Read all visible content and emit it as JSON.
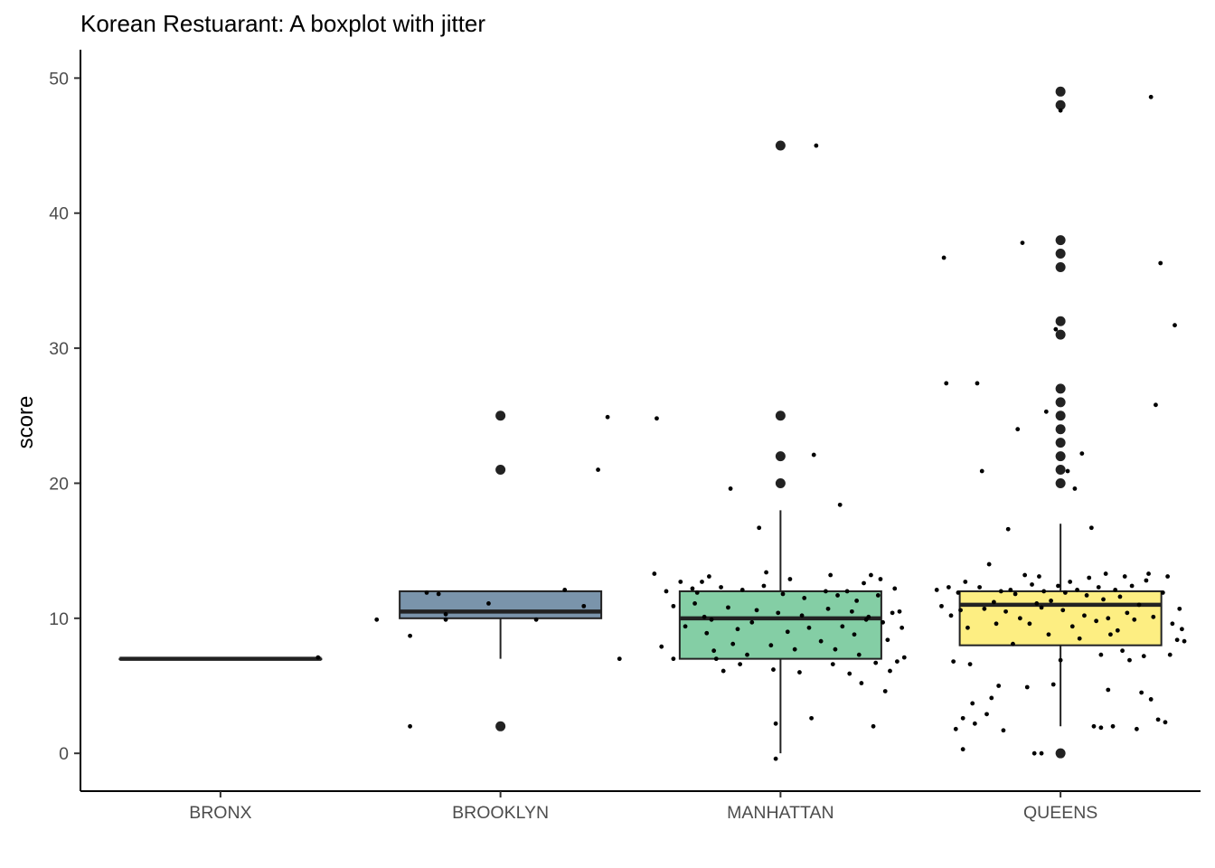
{
  "chart_data": {
    "type": "boxplot",
    "title": "Korean Restuarant: A boxplot with jitter",
    "xlabel": "",
    "ylabel": "score",
    "ylim": [
      -2.8,
      52.1
    ],
    "yticks": [
      0,
      10,
      20,
      30,
      40,
      50
    ],
    "grid": false,
    "legend": "none",
    "categories": [
      "BRONX",
      "BROOKLYN",
      "MANHATTAN",
      "QUEENS"
    ],
    "colors": [
      "#440154",
      "#7a94ab",
      "#84ceA5",
      "#fdee82"
    ],
    "boxes": [
      {
        "category": "BRONX",
        "lower_whisker": 7,
        "q1": 7,
        "median": 7,
        "q3": 7,
        "upper_whisker": 7,
        "outliers": []
      },
      {
        "category": "BROOKLYN",
        "lower_whisker": 7,
        "q1": 10,
        "median": 10.5,
        "q3": 12,
        "upper_whisker": 12,
        "outliers": [
          25,
          21,
          2
        ]
      },
      {
        "category": "MANHATTAN",
        "lower_whisker": 0,
        "q1": 7,
        "median": 10,
        "q3": 12,
        "upper_whisker": 18,
        "outliers": [
          45,
          25,
          22,
          20
        ]
      },
      {
        "category": "QUEENS",
        "lower_whisker": 2,
        "q1": 8,
        "median": 11,
        "q3": 12,
        "upper_whisker": 17,
        "outliers": [
          49,
          48,
          38,
          37,
          36,
          32,
          31,
          27,
          26,
          25,
          24,
          23,
          22,
          21,
          20,
          0
        ]
      }
    ],
    "jitter": [
      {
        "category": "BRONX",
        "points": [
          [
            0.41,
            7.1
          ]
        ]
      },
      {
        "category": "BROOKLYN",
        "points": [
          [
            -0.52,
            9.9
          ],
          [
            -0.38,
            8.7
          ],
          [
            -0.38,
            2.0
          ],
          [
            -0.31,
            11.9
          ],
          [
            -0.26,
            11.8
          ],
          [
            -0.23,
            10.3
          ],
          [
            -0.23,
            9.9
          ],
          [
            -0.05,
            11.1
          ],
          [
            0.15,
            9.9
          ],
          [
            0.27,
            12.1
          ],
          [
            0.35,
            10.9
          ],
          [
            0.41,
            21.0
          ],
          [
            0.45,
            24.9
          ],
          [
            0.5,
            7.0
          ]
        ]
      },
      {
        "category": "MANHATTAN",
        "points": [
          [
            -0.52,
            24.8
          ],
          [
            -0.53,
            13.3
          ],
          [
            -0.5,
            7.9
          ],
          [
            -0.48,
            12.0
          ],
          [
            -0.45,
            10.9
          ],
          [
            -0.42,
            12.7
          ],
          [
            -0.4,
            9.4
          ],
          [
            -0.37,
            12.2
          ],
          [
            -0.36,
            11.1
          ],
          [
            -0.35,
            11.9
          ],
          [
            -0.33,
            12.7
          ],
          [
            -0.32,
            10.1
          ],
          [
            -0.31,
            8.9
          ],
          [
            -0.3,
            13.1
          ],
          [
            -0.29,
            9.9
          ],
          [
            -0.28,
            7.6
          ],
          [
            -0.27,
            7.0
          ],
          [
            -0.25,
            12.3
          ],
          [
            -0.24,
            6.1
          ],
          [
            -0.22,
            10.8
          ],
          [
            -0.21,
            19.6
          ],
          [
            -0.2,
            8.1
          ],
          [
            -0.18,
            9.2
          ],
          [
            -0.17,
            6.6
          ],
          [
            -0.16,
            12.1
          ],
          [
            -0.14,
            7.3
          ],
          [
            -0.12,
            9.7
          ],
          [
            -0.1,
            10.6
          ],
          [
            -0.09,
            16.7
          ],
          [
            -0.07,
            12.4
          ],
          [
            -0.06,
            13.4
          ],
          [
            -0.04,
            8.0
          ],
          [
            -0.03,
            6.2
          ],
          [
            -0.02,
            2.2
          ],
          [
            -0.01,
            10.4
          ],
          [
            0.01,
            11.8
          ],
          [
            0.03,
            9.0
          ],
          [
            0.04,
            12.9
          ],
          [
            0.06,
            7.7
          ],
          [
            0.08,
            6.0
          ],
          [
            0.09,
            10.2
          ],
          [
            0.1,
            11.5
          ],
          [
            0.12,
            9.3
          ],
          [
            0.13,
            2.6
          ],
          [
            0.14,
            22.1
          ],
          [
            0.15,
            45.0
          ],
          [
            0.17,
            8.3
          ],
          [
            0.19,
            12.0
          ],
          [
            0.2,
            10.7
          ],
          [
            0.21,
            13.2
          ],
          [
            0.22,
            6.6
          ],
          [
            0.23,
            7.7
          ],
          [
            0.24,
            11.7
          ],
          [
            0.25,
            18.4
          ],
          [
            0.26,
            9.4
          ],
          [
            0.28,
            12.0
          ],
          [
            0.29,
            5.9
          ],
          [
            0.3,
            10.5
          ],
          [
            0.31,
            8.8
          ],
          [
            0.32,
            11.3
          ],
          [
            0.33,
            7.3
          ],
          [
            0.35,
            12.6
          ],
          [
            0.36,
            9.9
          ],
          [
            0.37,
            10.1
          ],
          [
            0.38,
            13.2
          ],
          [
            0.39,
            2.0
          ],
          [
            0.4,
            6.7
          ],
          [
            0.41,
            11.7
          ],
          [
            0.42,
            12.9
          ],
          [
            0.43,
            9.7
          ],
          [
            0.44,
            4.6
          ],
          [
            0.45,
            8.4
          ],
          [
            0.46,
            6.1
          ],
          [
            0.47,
            10.4
          ],
          [
            0.48,
            12.2
          ],
          [
            0.49,
            6.8
          ],
          [
            0.5,
            10.5
          ],
          [
            0.51,
            9.3
          ],
          [
            0.52,
            7.1
          ],
          [
            -0.02,
            -0.4
          ],
          [
            -0.45,
            7.0
          ],
          [
            0.34,
            5.2
          ]
        ]
      },
      {
        "category": "QUEENS",
        "points": [
          [
            -0.52,
            12.1
          ],
          [
            -0.5,
            10.9
          ],
          [
            -0.49,
            36.7
          ],
          [
            -0.48,
            27.4
          ],
          [
            -0.47,
            12.3
          ],
          [
            -0.46,
            10.2
          ],
          [
            -0.45,
            6.8
          ],
          [
            -0.44,
            1.8
          ],
          [
            -0.43,
            11.9
          ],
          [
            -0.42,
            10.6
          ],
          [
            -0.41,
            0.3
          ],
          [
            -0.4,
            12.7
          ],
          [
            -0.39,
            9.3
          ],
          [
            -0.38,
            6.6
          ],
          [
            -0.37,
            3.7
          ],
          [
            -0.36,
            2.2
          ],
          [
            -0.35,
            27.4
          ],
          [
            -0.34,
            12.3
          ],
          [
            -0.33,
            20.9
          ],
          [
            -0.32,
            10.7
          ],
          [
            -0.31,
            2.9
          ],
          [
            -0.3,
            14.0
          ],
          [
            -0.29,
            4.1
          ],
          [
            -0.28,
            11.2
          ],
          [
            -0.27,
            9.6
          ],
          [
            -0.26,
            5.0
          ],
          [
            -0.25,
            12.0
          ],
          [
            -0.24,
            1.7
          ],
          [
            -0.23,
            10.5
          ],
          [
            -0.22,
            16.6
          ],
          [
            -0.21,
            12.1
          ],
          [
            -0.2,
            8.1
          ],
          [
            -0.19,
            11.8
          ],
          [
            -0.18,
            24.0
          ],
          [
            -0.17,
            10.0
          ],
          [
            -0.16,
            37.8
          ],
          [
            -0.15,
            13.2
          ],
          [
            -0.14,
            4.9
          ],
          [
            -0.13,
            9.6
          ],
          [
            -0.12,
            12.5
          ],
          [
            -0.11,
            0.0
          ],
          [
            -0.1,
            11.1
          ],
          [
            -0.09,
            13.1
          ],
          [
            -0.08,
            10.8
          ],
          [
            -0.07,
            12.0
          ],
          [
            -0.06,
            25.3
          ],
          [
            -0.05,
            8.8
          ],
          [
            -0.04,
            11.3
          ],
          [
            -0.03,
            5.1
          ],
          [
            -0.02,
            31.4
          ],
          [
            -0.01,
            12.4
          ],
          [
            0.0,
            6.9
          ],
          [
            0.01,
            10.6
          ],
          [
            0.02,
            11.9
          ],
          [
            0.03,
            20.9
          ],
          [
            0.04,
            12.7
          ],
          [
            0.05,
            9.4
          ],
          [
            0.06,
            19.6
          ],
          [
            0.07,
            12.1
          ],
          [
            0.08,
            8.5
          ],
          [
            0.09,
            22.2
          ],
          [
            0.1,
            10.2
          ],
          [
            0.11,
            11.7
          ],
          [
            0.12,
            13.0
          ],
          [
            0.13,
            16.7
          ],
          [
            0.14,
            2.0
          ],
          [
            0.15,
            9.8
          ],
          [
            0.16,
            12.3
          ],
          [
            0.17,
            7.3
          ],
          [
            0.18,
            11.4
          ],
          [
            0.19,
            13.3
          ],
          [
            0.2,
            10.0
          ],
          [
            0.21,
            8.8
          ],
          [
            0.22,
            2.0
          ],
          [
            0.23,
            12.1
          ],
          [
            0.24,
            9.1
          ],
          [
            0.25,
            11.6
          ],
          [
            0.26,
            7.6
          ],
          [
            0.27,
            13.1
          ],
          [
            0.28,
            10.4
          ],
          [
            0.29,
            6.9
          ],
          [
            0.3,
            12.4
          ],
          [
            0.31,
            9.9
          ],
          [
            0.32,
            1.8
          ],
          [
            0.33,
            11.0
          ],
          [
            0.34,
            4.5
          ],
          [
            0.35,
            7.2
          ],
          [
            0.36,
            12.8
          ],
          [
            0.37,
            13.3
          ],
          [
            0.38,
            4.0
          ],
          [
            0.39,
            10.1
          ],
          [
            0.4,
            25.8
          ],
          [
            0.41,
            2.5
          ],
          [
            0.42,
            36.3
          ],
          [
            0.43,
            11.9
          ],
          [
            0.44,
            2.3
          ],
          [
            0.45,
            13.1
          ],
          [
            0.46,
            7.3
          ],
          [
            0.47,
            9.6
          ],
          [
            0.48,
            31.7
          ],
          [
            0.49,
            8.4
          ],
          [
            0.5,
            10.7
          ],
          [
            0.51,
            9.2
          ],
          [
            0.52,
            8.3
          ],
          [
            0.38,
            48.6
          ],
          [
            0.0,
            47.6
          ],
          [
            0.2,
            4.7
          ],
          [
            0.17,
            1.9
          ],
          [
            -0.41,
            2.6
          ],
          [
            -0.08,
            0.0
          ]
        ]
      }
    ]
  }
}
